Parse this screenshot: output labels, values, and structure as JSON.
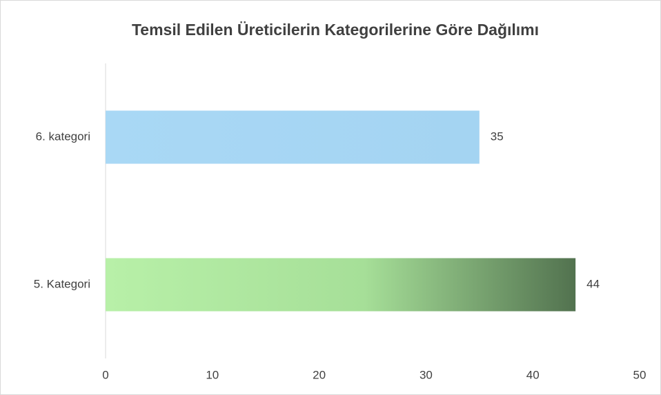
{
  "chart_data": {
    "type": "bar",
    "orientation": "horizontal",
    "title": "Temsil Edilen Üreticilerin Kategorilerine Göre Dağılımı",
    "categories": [
      "5. Kategori",
      "6. kategori"
    ],
    "values": [
      44,
      35
    ],
    "colors": [
      "#b8f0a8",
      "#a9d8f5"
    ],
    "xlim": [
      0,
      50
    ],
    "xticks": [
      0,
      10,
      20,
      30,
      40,
      50
    ],
    "grid": false,
    "data_labels": true
  }
}
